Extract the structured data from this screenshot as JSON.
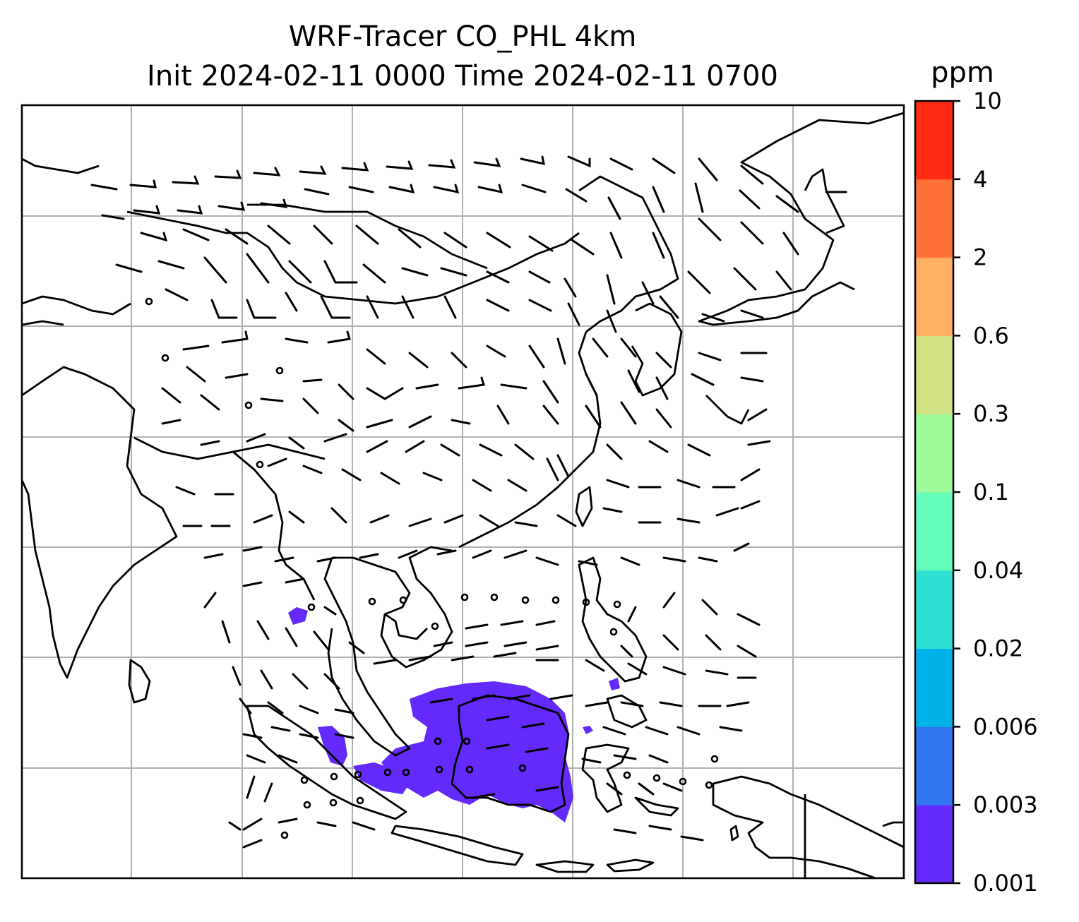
{
  "title": {
    "line1": "WRF-Tracer CO_PHL 4km",
    "line2": "Init 2024-02-11 0000 Time 2024-02-11 0700"
  },
  "colorbar": {
    "unit": "ppm",
    "levels": [
      "0.001",
      "0.003",
      "0.006",
      "0.02",
      "0.04",
      "0.1",
      "0.3",
      "0.6",
      "2",
      "4",
      "10"
    ],
    "colors": [
      "#6429fb",
      "#3276f0",
      "#00b2ea",
      "#30dfd3",
      "#63fcbb",
      "#9cfa9a",
      "#d0e284",
      "#fdb064",
      "#ff7237",
      "#ff2a14"
    ]
  },
  "map": {
    "gridlines": true,
    "coastline_color": "#000000",
    "gridline_color": "#b0b0b0",
    "tracer_color": "#6429fb"
  }
}
